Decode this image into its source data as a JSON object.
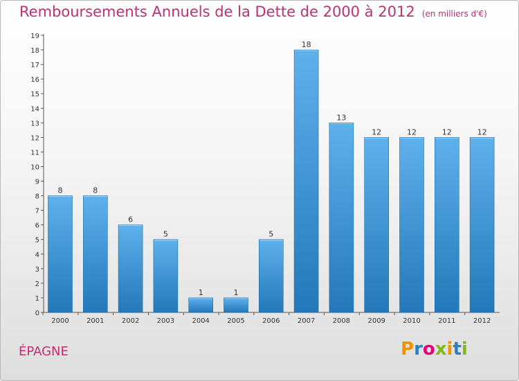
{
  "header": {
    "title": "Remboursements Annuels de la Dette de 2000 à 2012",
    "subtitle": "(en milliers d'€)"
  },
  "footer": {
    "commune": "ÉPAGNE",
    "brand": "Proxiti"
  },
  "colors": {
    "title": "#c0306e",
    "bar_top": "#5fb1ec",
    "bar_bottom": "#2478b9",
    "logo": [
      "#f39200",
      "#2f7ec1",
      "#e2007a",
      "#84b818",
      "#f39200",
      "#2f7ec1",
      "#84b818"
    ]
  },
  "chart_data": {
    "type": "bar",
    "title": "Remboursements Annuels de la Dette de 2000 à 2012",
    "subtitle": "(en milliers d'€)",
    "categories": [
      "2000",
      "2001",
      "2002",
      "2003",
      "2004",
      "2005",
      "2006",
      "2007",
      "2008",
      "2009",
      "2010",
      "2011",
      "2012"
    ],
    "values": [
      8,
      8,
      6,
      5,
      1,
      1,
      5,
      18,
      13,
      12,
      12,
      12,
      12
    ],
    "ylim": [
      0,
      19
    ],
    "yticks": [
      0,
      1,
      2,
      3,
      4,
      5,
      6,
      7,
      8,
      9,
      10,
      11,
      12,
      13,
      14,
      15,
      16,
      17,
      18,
      19
    ],
    "xlabel": "",
    "ylabel": "",
    "grid": false,
    "legend": "none"
  }
}
